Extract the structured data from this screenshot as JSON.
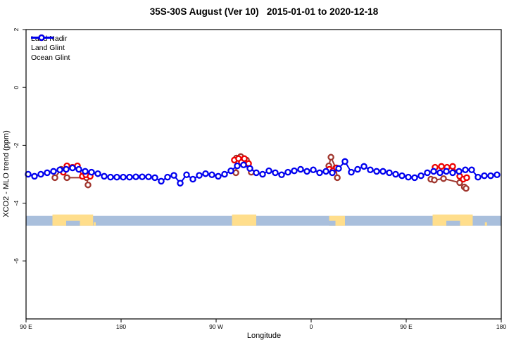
{
  "header": {
    "title": "35S-30S August (Ver 10)   2015-01-01 to 2020-12-18"
  },
  "axes": {
    "x": {
      "title": "Longitude"
    },
    "y": {
      "title": "XCO2 - MLO trend (ppm)"
    }
  },
  "legend": {
    "items": [
      {
        "label": "Land Nadir",
        "color": "#A0372F"
      },
      {
        "label": "Land Glint",
        "color": "#EE0000"
      },
      {
        "label": "Ocean Glint",
        "color": "#0000EE"
      }
    ]
  },
  "chart_data": {
    "type": "line",
    "title": "35S-30S August (Ver 10)   2015-01-01 to 2020-12-18",
    "xlabel": "Longitude",
    "ylabel": "XCO2 - MLO trend (ppm)",
    "x_axis": {
      "note": "longitude axis starts at 90E, wraps eastward through the dateline and back to 180; positions stored as degrees east of 90E",
      "range_deg": [
        0,
        450
      ],
      "ticks": [
        {
          "deg": 0,
          "label": "90 E"
        },
        {
          "deg": 90,
          "label": "180"
        },
        {
          "deg": 180,
          "label": "90 W"
        },
        {
          "deg": 270,
          "label": "0"
        },
        {
          "deg": 360,
          "label": "90 E"
        },
        {
          "deg": 450,
          "label": "180"
        }
      ]
    },
    "y_axis": {
      "range": [
        -8,
        2
      ],
      "grid": false,
      "ticks": [
        {
          "value": 2,
          "label": "2"
        },
        {
          "value": 0,
          "label": "0"
        },
        {
          "value": -2,
          "label": "-2"
        },
        {
          "value": -4,
          "label": "-4"
        },
        {
          "value": -6,
          "label": "-6"
        }
      ]
    },
    "legend_position": "top-left",
    "marker": "open-circle",
    "series": [
      {
        "name": "Land Nadir",
        "color": "#A0372F",
        "segments": [
          [
            [
              27.3,
              -3.12
            ],
            [
              33.3,
              -2.83
            ],
            [
              38.7,
              -3.12
            ],
            [
              57.3,
              -3.12
            ],
            [
              58.7,
              -3.37
            ]
          ],
          [
            [
              198.7,
              -2.95
            ],
            [
              199.3,
              -2.44
            ],
            [
              203.3,
              -2.39
            ],
            [
              208.7,
              -2.51
            ],
            [
              213.3,
              -2.93
            ]
          ],
          [
            [
              286.7,
              -2.71
            ],
            [
              288.7,
              -2.41
            ],
            [
              293.3,
              -2.78
            ],
            [
              294.7,
              -3.12
            ]
          ],
          [
            [
              383.3,
              -3.17
            ],
            [
              386.7,
              -3.2
            ],
            [
              395.3,
              -3.15
            ],
            [
              410.7,
              -3.29
            ],
            [
              415,
              -3.44
            ],
            [
              416.7,
              -3.49
            ]
          ]
        ]
      },
      {
        "name": "Land Glint",
        "color": "#EE0000",
        "segments": [
          [
            [
              35.3,
              -2.93
            ],
            [
              38.7,
              -2.71
            ],
            [
              44,
              -2.76
            ],
            [
              48.7,
              -2.71
            ],
            [
              53.3,
              -3.07
            ],
            [
              56.7,
              -3.02
            ],
            [
              60.7,
              -3.07
            ]
          ],
          [
            [
              197.3,
              -2.51
            ],
            [
              201.3,
              -2.46
            ],
            [
              204,
              -2.59
            ],
            [
              206.7,
              -2.46
            ],
            [
              210.7,
              -2.63
            ]
          ],
          [
            [
              287.3,
              -2.83
            ],
            [
              290.7,
              -2.88
            ],
            [
              294,
              -2.78
            ]
          ],
          [
            [
              387.3,
              -2.76
            ],
            [
              393.3,
              -2.73
            ],
            [
              398.7,
              -2.76
            ],
            [
              404,
              -2.73
            ],
            [
              410.7,
              -3.07
            ],
            [
              414,
              -3.17
            ],
            [
              417.3,
              -3.12
            ]
          ]
        ]
      },
      {
        "name": "Ocean Glint",
        "color": "#0000EE",
        "segments": [
          [
            [
              2,
              -3.0
            ],
            [
              8,
              -3.07
            ],
            [
              14,
              -3.0
            ],
            [
              20,
              -2.95
            ],
            [
              26,
              -2.9
            ],
            [
              32,
              -2.85
            ],
            [
              38,
              -2.83
            ],
            [
              44,
              -2.78
            ],
            [
              50,
              -2.83
            ],
            [
              56,
              -2.9
            ],
            [
              62,
              -2.93
            ],
            [
              68,
              -2.98
            ],
            [
              74,
              -3.07
            ],
            [
              80,
              -3.1
            ],
            [
              86,
              -3.1
            ],
            [
              92,
              -3.1
            ],
            [
              98,
              -3.1
            ],
            [
              104,
              -3.09
            ],
            [
              110,
              -3.09
            ],
            [
              116,
              -3.09
            ],
            [
              122,
              -3.12
            ],
            [
              128,
              -3.24
            ],
            [
              134,
              -3.1
            ],
            [
              140,
              -3.04
            ],
            [
              146,
              -3.31
            ],
            [
              152,
              -3.02
            ],
            [
              158,
              -3.17
            ],
            [
              164,
              -3.04
            ],
            [
              170,
              -2.98
            ],
            [
              176,
              -3.02
            ],
            [
              182,
              -3.07
            ],
            [
              188,
              -3.0
            ],
            [
              194,
              -2.88
            ],
            [
              200,
              -2.71
            ],
            [
              206,
              -2.68
            ],
            [
              212,
              -2.8
            ],
            [
              218,
              -2.95
            ],
            [
              224,
              -3.0
            ],
            [
              230,
              -2.88
            ],
            [
              236,
              -2.95
            ],
            [
              242,
              -3.02
            ],
            [
              248,
              -2.93
            ],
            [
              254,
              -2.88
            ],
            [
              260,
              -2.83
            ],
            [
              266,
              -2.9
            ],
            [
              272,
              -2.85
            ],
            [
              278,
              -2.95
            ],
            [
              284,
              -2.9
            ],
            [
              290,
              -2.95
            ],
            [
              296,
              -2.8
            ],
            [
              302,
              -2.56
            ],
            [
              308,
              -2.93
            ],
            [
              314,
              -2.83
            ],
            [
              320,
              -2.73
            ],
            [
              326,
              -2.85
            ],
            [
              332,
              -2.9
            ],
            [
              338,
              -2.9
            ],
            [
              344,
              -2.95
            ],
            [
              350,
              -3.0
            ],
            [
              356,
              -3.05
            ],
            [
              362,
              -3.1
            ],
            [
              368,
              -3.12
            ],
            [
              374,
              -3.05
            ],
            [
              380,
              -2.95
            ],
            [
              386,
              -2.9
            ],
            [
              392,
              -2.95
            ],
            [
              398,
              -2.9
            ],
            [
              404,
              -2.95
            ],
            [
              410,
              -2.9
            ],
            [
              416,
              -2.85
            ],
            [
              422,
              -2.85
            ],
            [
              428,
              -3.1
            ],
            [
              434,
              -3.05
            ],
            [
              440,
              -3.05
            ],
            [
              446,
              -3.02
            ]
          ]
        ]
      }
    ],
    "land_strip": {
      "description": "map strip of the 35S-30S latitude band: land in yellow, ocean in grey-blue",
      "value_range": [
        -4.44,
        -4.78
      ],
      "ocean_color": "#A9BFDC",
      "land_color": "#FFDE8C",
      "patches": [
        {
          "name": "Australia",
          "from_deg": 25,
          "to_deg": 63.5,
          "raise_top": true,
          "bottom_only": false
        },
        {
          "name": "Tasmania-speck",
          "from_deg": 64,
          "to_deg": 66,
          "raise_top": false,
          "bottom_only": true
        },
        {
          "name": "South-America",
          "from_deg": 195,
          "to_deg": 218,
          "raise_top": true,
          "bottom_only": false
        },
        {
          "name": "South-Africa",
          "from_deg": 287,
          "to_deg": 302,
          "raise_top": false,
          "bottom_only": false
        },
        {
          "name": "Australia",
          "from_deg": 385,
          "to_deg": 423,
          "raise_top": true,
          "bottom_only": false
        },
        {
          "name": "New-Zealand-speck",
          "from_deg": 434.5,
          "to_deg": 436.5,
          "raise_top": false,
          "bottom_only": true
        }
      ],
      "ocean_notches": [
        {
          "name": "Great-Australian-Bight",
          "from_deg": 38,
          "to_deg": 51
        },
        {
          "name": "South-Africa-coast",
          "from_deg": 287,
          "to_deg": 293
        },
        {
          "name": "Great-Australian-Bight",
          "from_deg": 398,
          "to_deg": 411
        }
      ]
    }
  }
}
